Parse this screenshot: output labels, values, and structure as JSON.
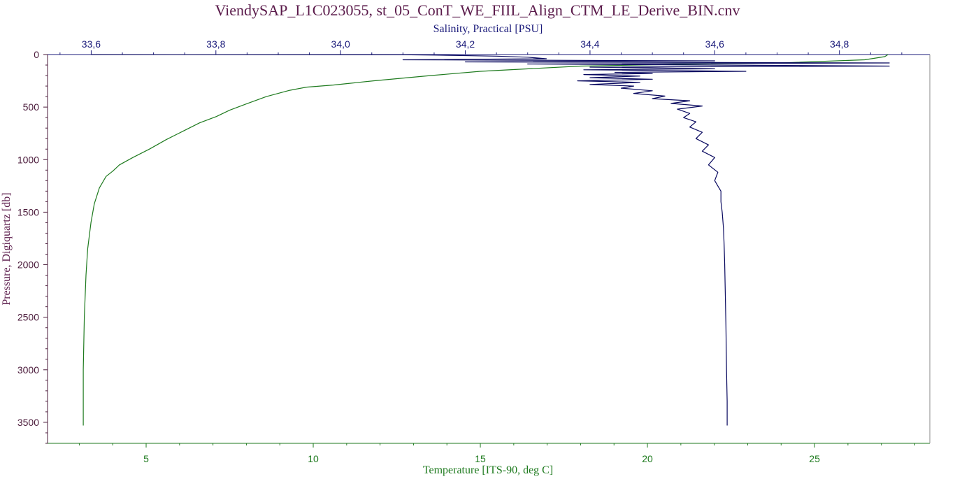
{
  "chart_data": {
    "type": "line",
    "title": "ViendySAP_L1C023055, st_05_ConT_WE_FIIL_Align_CTM_LE_Derive_BIN.cnv",
    "y_axis": {
      "label": "Pressure, Digiquartz [db]",
      "range": [
        0,
        3700
      ],
      "inverted": true,
      "ticks": [
        "0",
        "500",
        "1000",
        "1500",
        "2000",
        "2500",
        "3000",
        "3500"
      ],
      "color": "#4a1a3a"
    },
    "x_axis_top": {
      "label": "Salinity, Practical [PSU]",
      "range": [
        33.53,
        34.945
      ],
      "ticks": [
        "33,6",
        "33,8",
        "34,0",
        "34,2",
        "34,4",
        "34,6",
        "34,8"
      ],
      "color": "#1a1a7a"
    },
    "x_axis_bottom": {
      "label": "Temperature [ITS-90, deg C]",
      "range": [
        2.05,
        28.45
      ],
      "ticks": [
        "5",
        "10",
        "15",
        "20",
        "25"
      ],
      "color": "#1e7a1e"
    },
    "grid": false,
    "series": [
      {
        "axis": "temperature",
        "color": "#1e7a1e",
        "points": [
          [
            27.2,
            0
          ],
          [
            27.1,
            20
          ],
          [
            26.5,
            50
          ],
          [
            24.0,
            80
          ],
          [
            21.5,
            90
          ],
          [
            18.0,
            110
          ],
          [
            15.0,
            160
          ],
          [
            13.5,
            200
          ],
          [
            11.8,
            250
          ],
          [
            10.6,
            290
          ],
          [
            9.8,
            310
          ],
          [
            9.3,
            340
          ],
          [
            8.6,
            400
          ],
          [
            8.0,
            470
          ],
          [
            7.5,
            530
          ],
          [
            7.1,
            590
          ],
          [
            6.6,
            650
          ],
          [
            6.1,
            730
          ],
          [
            5.6,
            810
          ],
          [
            5.1,
            900
          ],
          [
            4.6,
            980
          ],
          [
            4.2,
            1050
          ],
          [
            4.0,
            1110
          ],
          [
            3.8,
            1160
          ],
          [
            3.6,
            1270
          ],
          [
            3.45,
            1420
          ],
          [
            3.35,
            1600
          ],
          [
            3.25,
            1850
          ],
          [
            3.2,
            2100
          ],
          [
            3.15,
            2500
          ],
          [
            3.12,
            3000
          ],
          [
            3.12,
            3530
          ]
        ]
      },
      {
        "axis": "salinity",
        "color": "#0a0a60",
        "points": [
          [
            33.6,
            0
          ],
          [
            34.1,
            2
          ],
          [
            34.15,
            5
          ],
          [
            34.25,
            15
          ],
          [
            34.3,
            25
          ],
          [
            34.33,
            40
          ],
          [
            34.1,
            50
          ],
          [
            34.6,
            60
          ],
          [
            34.2,
            70
          ],
          [
            34.88,
            80
          ],
          [
            34.3,
            90
          ],
          [
            34.88,
            110
          ],
          [
            34.4,
            120
          ],
          [
            34.6,
            135
          ],
          [
            34.39,
            145
          ],
          [
            34.65,
            160
          ],
          [
            34.44,
            170
          ],
          [
            34.5,
            180
          ],
          [
            34.39,
            190
          ],
          [
            34.48,
            205
          ],
          [
            34.4,
            220
          ],
          [
            34.5,
            235
          ],
          [
            34.38,
            250
          ],
          [
            34.48,
            265
          ],
          [
            34.4,
            285
          ],
          [
            34.47,
            300
          ],
          [
            34.45,
            320
          ],
          [
            34.5,
            345
          ],
          [
            34.47,
            370
          ],
          [
            34.52,
            395
          ],
          [
            34.5,
            420
          ],
          [
            34.56,
            440
          ],
          [
            34.53,
            465
          ],
          [
            34.58,
            490
          ],
          [
            34.54,
            520
          ],
          [
            34.56,
            560
          ],
          [
            34.55,
            600
          ],
          [
            34.57,
            640
          ],
          [
            34.56,
            690
          ],
          [
            34.58,
            740
          ],
          [
            34.57,
            800
          ],
          [
            34.59,
            860
          ],
          [
            34.58,
            920
          ],
          [
            34.6,
            980
          ],
          [
            34.59,
            1050
          ],
          [
            34.605,
            1120
          ],
          [
            34.6,
            1200
          ],
          [
            34.61,
            1300
          ],
          [
            34.61,
            1400
          ],
          [
            34.612,
            1500
          ],
          [
            34.614,
            1650
          ],
          [
            34.615,
            1800
          ],
          [
            34.616,
            2000
          ],
          [
            34.617,
            2300
          ],
          [
            34.618,
            2600
          ],
          [
            34.619,
            3000
          ],
          [
            34.62,
            3300
          ],
          [
            34.62,
            3530
          ]
        ]
      }
    ]
  }
}
